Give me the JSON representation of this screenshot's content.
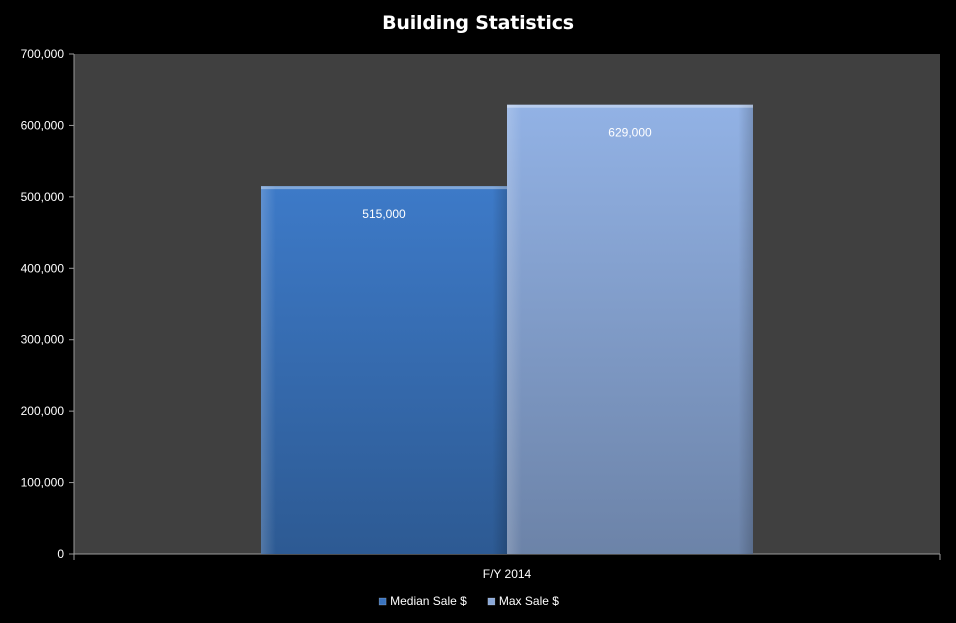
{
  "chart_data": {
    "type": "bar",
    "title": "Building Statistics",
    "categories": [
      "F/Y 2014"
    ],
    "series": [
      {
        "name": "Median Sale $",
        "values": [
          515000
        ],
        "data_labels": [
          "515,000"
        ],
        "color": "#3a73bd"
      },
      {
        "name": "Max Sale $",
        "values": [
          629000
        ],
        "data_labels": [
          "629,000"
        ],
        "color": "#8aa8d8"
      }
    ],
    "ylim": [
      0,
      700000
    ],
    "y_ticks": [
      0,
      100000,
      200000,
      300000,
      400000,
      500000,
      600000,
      700000
    ],
    "y_tick_labels": [
      "0",
      "100,000",
      "200,000",
      "300,000",
      "400,000",
      "500,000",
      "600,000",
      "700,000"
    ],
    "grid": false,
    "legend_position": "bottom",
    "colors": {
      "background": "#000000",
      "plot_area": "#404040",
      "text": "#ffffff"
    }
  }
}
